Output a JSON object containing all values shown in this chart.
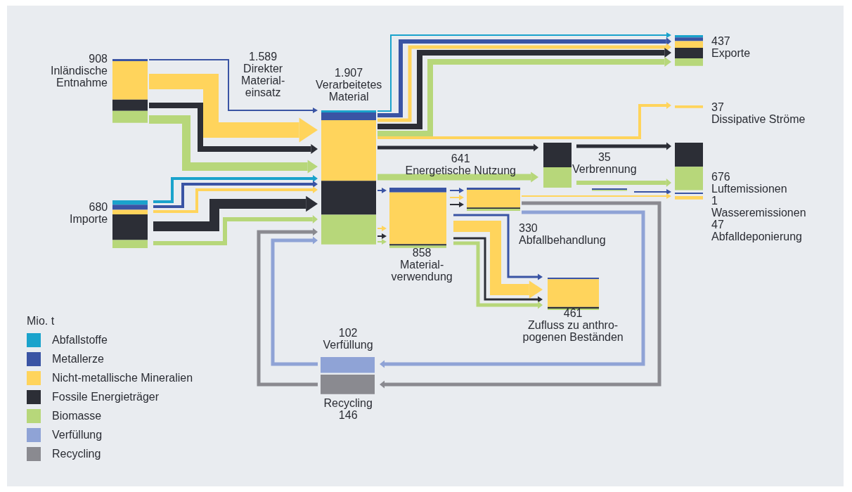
{
  "chart_data": {
    "type": "other",
    "legend_title": "Mio. t",
    "legend": "bottom left",
    "categories": [
      "Inländische\nEntnahme",
      "Importe",
      "Direkter\nMaterial-\neinsatz",
      "Verarbeitetes\nMaterial",
      "Energetische Nutzung",
      "Verbrennung",
      "Material-\nverwendung",
      "Abfallbehandlung",
      "Zufluss zu anthro-\npogenen Beständen",
      "Verfüllung",
      "Recycling",
      "Exporte",
      "Dissipative Ströme",
      "Luftemissionen",
      "Wasseremissionen",
      "Abfalldeponierung"
    ],
    "values": [
      908,
      680,
      1589,
      1907,
      641,
      35,
      858,
      330,
      461,
      102,
      146,
      437,
      37,
      676,
      1,
      47
    ],
    "data_labels": true,
    "value_labels": [
      "908",
      "680",
      "1.589",
      "1.907",
      "641",
      "35",
      "858",
      "330",
      "461",
      "102",
      "146",
      "437",
      "37",
      "676",
      "1",
      "47"
    ],
    "series": [
      {
        "name": "Abfallstoffe",
        "color": "#1aa3cc",
        "values": [
          null,
          null,
          null,
          null,
          null,
          null,
          null,
          null,
          null,
          null,
          null,
          null,
          null,
          null,
          null,
          null
        ]
      },
      {
        "name": "Metallerze",
        "color": "#3a54a4",
        "values": [
          null,
          null,
          null,
          null,
          null,
          null,
          null,
          null,
          null,
          null,
          null,
          null,
          null,
          null,
          null,
          null
        ]
      },
      {
        "name": "Nicht-metallische Mineralien",
        "color": "#ffd45c",
        "values": [
          null,
          null,
          null,
          null,
          null,
          null,
          null,
          null,
          null,
          null,
          null,
          null,
          null,
          null,
          null,
          null
        ]
      },
      {
        "name": "Fossile Energieträger",
        "color": "#2c2e36",
        "values": [
          null,
          null,
          null,
          null,
          null,
          null,
          null,
          null,
          null,
          null,
          null,
          null,
          null,
          null,
          null,
          null
        ]
      },
      {
        "name": "Biomasse",
        "color": "#b7d77a",
        "values": [
          null,
          null,
          null,
          null,
          null,
          null,
          null,
          null,
          null,
          null,
          null,
          null,
          null,
          null,
          null,
          null
        ]
      },
      {
        "name": "Verfüllung",
        "color": "#8fa3d6",
        "values": [
          null,
          null,
          null,
          null,
          null,
          null,
          null,
          null,
          null,
          null,
          null,
          null,
          null,
          null,
          null,
          null
        ]
      },
      {
        "name": "Recycling",
        "color": "#8a8a90",
        "values": [
          null,
          null,
          null,
          null,
          null,
          null,
          null,
          null,
          null,
          null,
          null,
          null,
          null,
          null,
          null,
          null
        ]
      }
    ]
  }
}
